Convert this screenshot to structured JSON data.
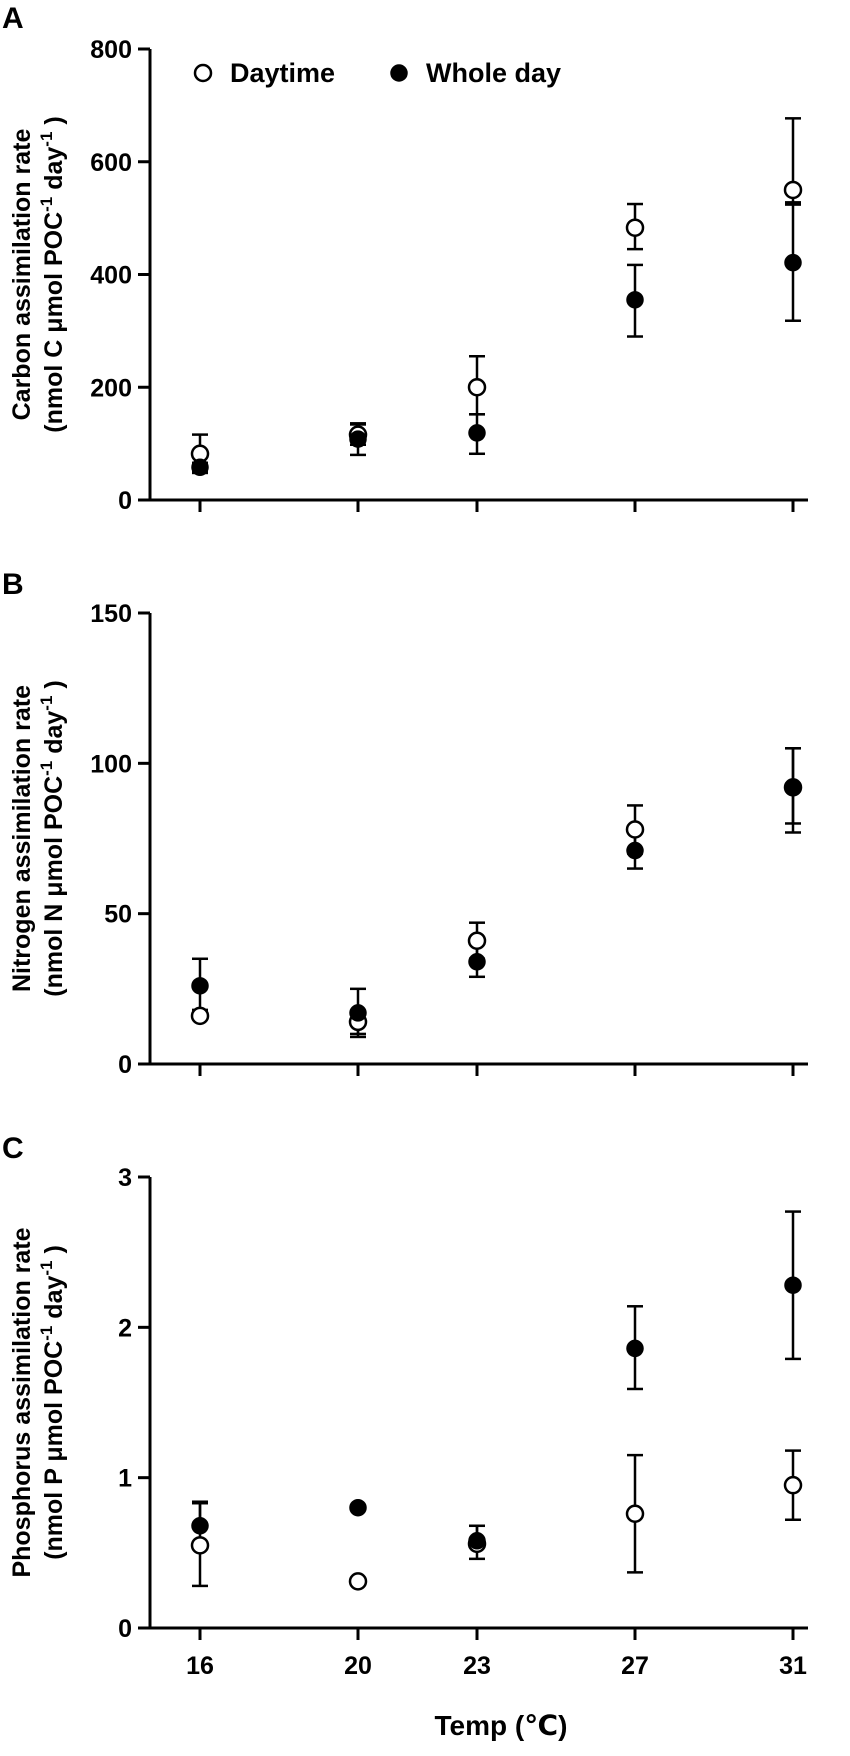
{
  "chart_data": [
    {
      "panel": "A",
      "type": "scatter",
      "ylabel_line1": "Carbon assimilation rate",
      "ylabel_line2_parts": [
        "(nmol C μmol POC",
        "-1",
        " day",
        "-1",
        " )"
      ],
      "ylim": [
        0,
        800
      ],
      "yticks": [
        0,
        200,
        400,
        600,
        800
      ],
      "x": [
        16,
        20,
        23,
        27,
        31
      ],
      "series": [
        {
          "name": "Daytime",
          "marker": "open-circle",
          "values": [
            82,
            116,
            200,
            483,
            550
          ],
          "err_low": [
            34,
            18,
            48,
            38,
            22
          ],
          "err_high": [
            34,
            18,
            55,
            42,
            127
          ]
        },
        {
          "name": "Whole day",
          "marker": "filled-circle",
          "values": [
            58,
            108,
            119,
            355,
            421
          ],
          "err_low": [
            8,
            28,
            37,
            65,
            103
          ],
          "err_high": [
            8,
            28,
            33,
            62,
            103
          ]
        }
      ],
      "legend": {
        "placement": "top-left",
        "items": [
          "Daytime",
          "Whole day"
        ]
      }
    },
    {
      "panel": "B",
      "type": "scatter",
      "ylabel_line1": "Nitrogen assimilation rate",
      "ylabel_line2_parts": [
        "(nmol N μmol POC",
        "-1",
        " day",
        "-1",
        " )"
      ],
      "ylim": [
        0,
        150
      ],
      "yticks": [
        0,
        50,
        100,
        150
      ],
      "x": [
        16,
        20,
        23,
        27,
        31
      ],
      "series": [
        {
          "name": "Daytime",
          "marker": "open-circle",
          "values": [
            16,
            14,
            41,
            78,
            92
          ],
          "err_low": [
            0,
            5,
            6,
            8,
            12
          ],
          "err_high": [
            0,
            3,
            6,
            8,
            13
          ]
        },
        {
          "name": "Whole day",
          "marker": "filled-circle",
          "values": [
            26,
            17,
            34,
            71,
            92
          ],
          "err_low": [
            8,
            7,
            5,
            6,
            15
          ],
          "err_high": [
            9,
            8,
            6,
            7,
            13
          ]
        }
      ]
    },
    {
      "panel": "C",
      "type": "scatter",
      "ylabel_line1": "Phosphorus assimilation rate",
      "ylabel_line2_parts": [
        "(nmol P μmol POC",
        "-1",
        " day",
        "-1",
        " )"
      ],
      "ylim": [
        0,
        3
      ],
      "yticks": [
        0,
        1,
        2,
        3
      ],
      "x": [
        16,
        20,
        23,
        27,
        31
      ],
      "xlabel": "Temp (℃)",
      "series": [
        {
          "name": "Daytime",
          "marker": "open-circle",
          "values": [
            0.55,
            0.31,
            0.56,
            0.76,
            0.95
          ],
          "err_low": [
            0.27,
            0,
            0.1,
            0.39,
            0.23
          ],
          "err_high": [
            0.28,
            0,
            0.12,
            0.39,
            0.23
          ]
        },
        {
          "name": "Whole day",
          "marker": "filled-circle",
          "values": [
            0.68,
            0.8,
            0.58,
            1.86,
            2.28
          ],
          "err_low": [
            0.0,
            0.0,
            0.0,
            0.27,
            0.49
          ],
          "err_high": [
            0.16,
            0.0,
            0.1,
            0.28,
            0.49
          ]
        }
      ]
    }
  ]
}
